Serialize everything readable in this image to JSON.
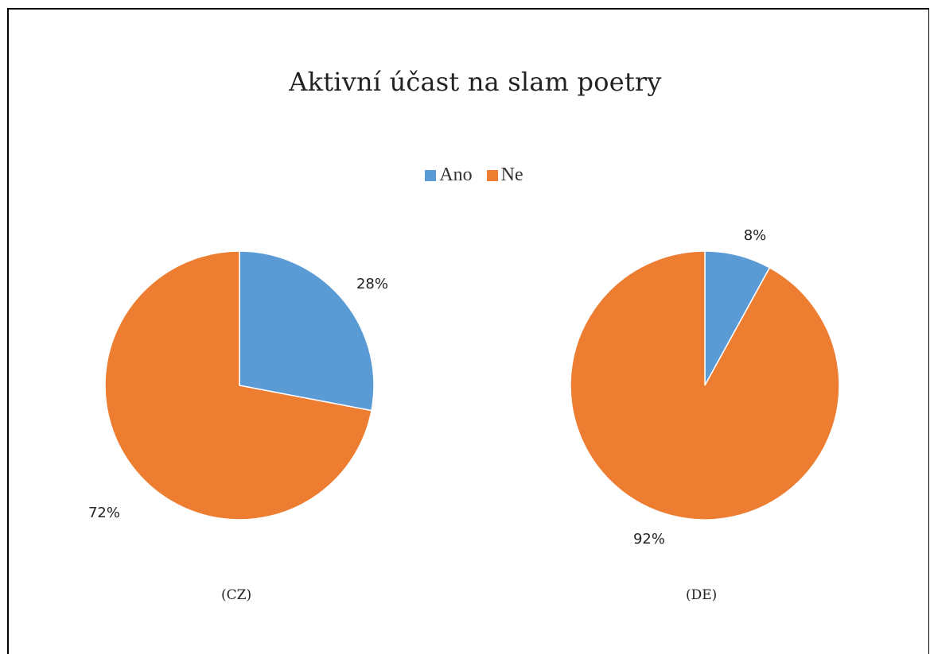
{
  "chart_data": [
    {
      "type": "pie",
      "title": "Aktivní účast na slam poetry",
      "categories": [
        "Ano",
        "Ne"
      ],
      "values": [
        28,
        72
      ],
      "data_labels": [
        "28%",
        "72%"
      ],
      "caption": "(CZ)",
      "colors": [
        "#5B9BD5",
        "#ED7D31"
      ]
    },
    {
      "type": "pie",
      "categories": [
        "Ano",
        "Ne"
      ],
      "values": [
        8,
        92
      ],
      "data_labels": [
        "8%",
        "92%"
      ],
      "caption": "(DE)",
      "colors": [
        "#5B9BD5",
        "#ED7D31"
      ]
    }
  ],
  "legend": {
    "placement": "top",
    "items": [
      {
        "label": "Ano",
        "color": "#5B9BD5"
      },
      {
        "label": "Ne",
        "color": "#ED7D31"
      }
    ]
  }
}
